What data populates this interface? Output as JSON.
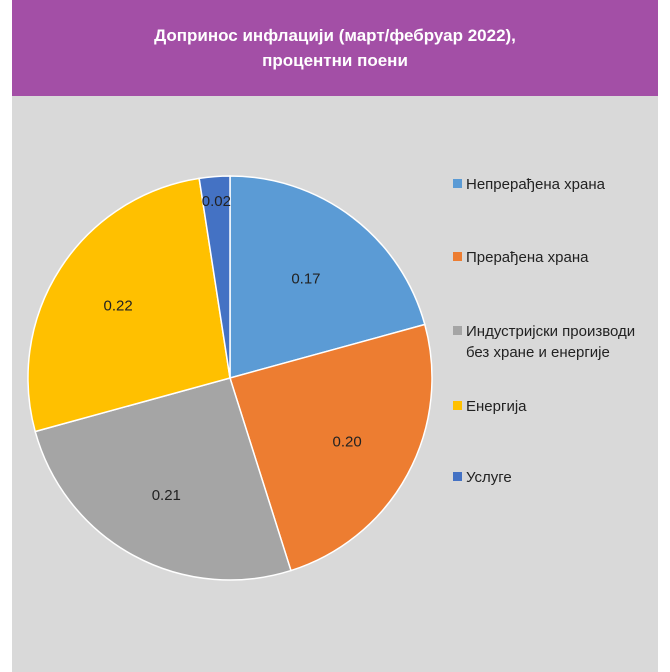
{
  "chart_data": {
    "type": "pie",
    "title": "Допринос инфлацији (март/фебруар 2022), процентни поени",
    "categories": [
      "Непрерађена храна",
      "Прерађена храна",
      "Индустријски производи без хране и енергије",
      "Енергија",
      "Услуге"
    ],
    "values": [
      0.17,
      0.2,
      0.21,
      0.22,
      0.02
    ],
    "data_labels": [
      "0.17",
      "0.20",
      "0.21",
      "0.22",
      "0.02"
    ],
    "colors": [
      "#5b9bd5",
      "#ed7d31",
      "#a5a5a5",
      "#ffc000",
      "#4472c4"
    ],
    "legend_position": "right"
  },
  "header": {
    "title_line1": "Допринос инфлацији (март/фебруар 2022),",
    "title_line2": "процентни поени"
  }
}
